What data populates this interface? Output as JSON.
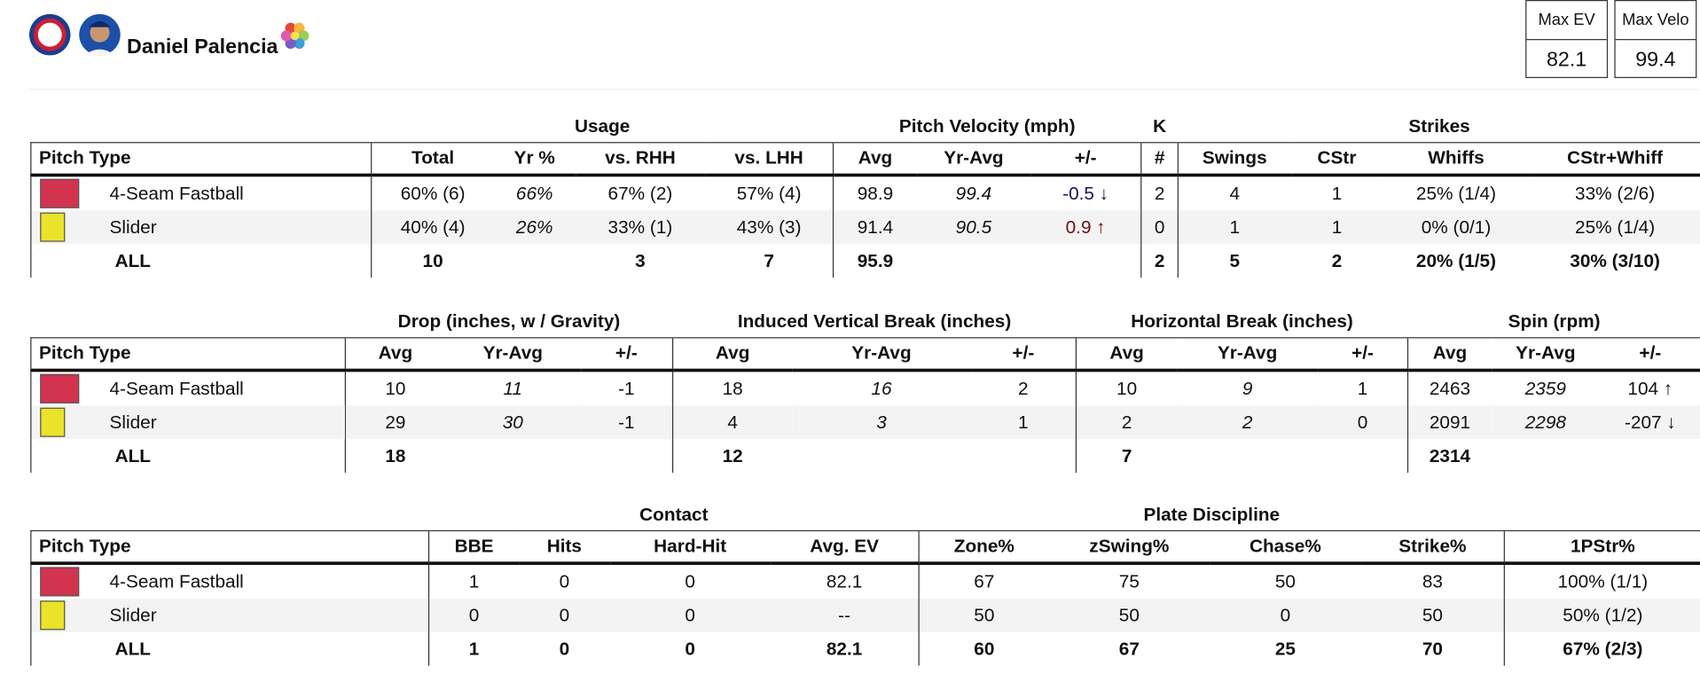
{
  "header": {
    "player_name": "Daniel Palencia",
    "stats": [
      {
        "label": "Max EV",
        "value": "82.1"
      },
      {
        "label": "Max Velo",
        "value": "99.4"
      }
    ]
  },
  "tables": [
    {
      "first_column": "Pitch Type",
      "groups": [
        {
          "label": "Usage",
          "columns": [
            "Total",
            {
              "label": "Yr %",
              "italic": true
            },
            "vs. RHH",
            "vs. LHH"
          ]
        },
        {
          "label": "Pitch Velocity (mph)",
          "columns": [
            "Avg",
            {
              "label": "Yr-Avg",
              "italic": true
            },
            "+/-"
          ]
        },
        {
          "label": "K",
          "columns": [
            "#"
          ]
        },
        {
          "label": "Strikes",
          "columns": [
            "Swings",
            "CStr",
            "Whiffs",
            "CStr+Whiff"
          ]
        }
      ],
      "rows": [
        {
          "pitch": "4-Seam Fastball",
          "color": "#d2344f",
          "cells": [
            "60% (6)",
            "66%",
            "67% (2)",
            "57% (4)",
            "98.9",
            "99.4",
            {
              "text": "-0.5 ↓",
              "color": "#14145a"
            },
            "2",
            "4",
            "1",
            "25% (1/4)",
            "33% (2/6)"
          ]
        },
        {
          "pitch": "Slider",
          "color": "#ebe22a",
          "cells": [
            "40% (4)",
            "26%",
            "33% (1)",
            "43% (3)",
            "91.4",
            "90.5",
            {
              "text": "0.9 ↑",
              "color": "#6b0f0f"
            },
            "0",
            "1",
            "1",
            "0% (0/1)",
            "25% (1/4)"
          ]
        },
        {
          "pitch": "ALL",
          "cells": [
            "10",
            null,
            "3",
            "7",
            "95.9",
            null,
            null,
            "2",
            "5",
            "2",
            "20% (1/5)",
            "30% (3/10)"
          ]
        }
      ]
    },
    {
      "first_column": "Pitch Type",
      "groups": [
        {
          "label": "Drop (inches, w / Gravity)",
          "columns": [
            "Avg",
            {
              "label": "Yr-Avg",
              "italic": true
            },
            "+/-"
          ]
        },
        {
          "label": "Induced Vertical Break (inches)",
          "columns": [
            "Avg",
            {
              "label": "Yr-Avg",
              "italic": true
            },
            "+/-"
          ]
        },
        {
          "label": "Horizontal Break (inches)",
          "columns": [
            "Avg",
            {
              "label": "Yr-Avg",
              "italic": true
            },
            "+/-"
          ]
        },
        {
          "label": "Spin (rpm)",
          "columns": [
            "Avg",
            {
              "label": "Yr-Avg",
              "italic": true
            },
            "+/-"
          ]
        }
      ],
      "rows": [
        {
          "pitch": "4-Seam Fastball",
          "color": "#d2344f",
          "cells": [
            "10",
            "11",
            "-1",
            "18",
            "16",
            "2",
            "10",
            "9",
            "1",
            "2463",
            "2359",
            "104 ↑"
          ]
        },
        {
          "pitch": "Slider",
          "color": "#ebe22a",
          "cells": [
            "29",
            "30",
            "-1",
            "4",
            "3",
            "1",
            "2",
            "2",
            "0",
            "2091",
            "2298",
            "-207 ↓"
          ]
        },
        {
          "pitch": "ALL",
          "cells": [
            "18",
            null,
            null,
            "12",
            null,
            null,
            "7",
            null,
            null,
            "2314",
            null,
            null
          ]
        }
      ]
    },
    {
      "first_column": "Pitch Type",
      "groups": [
        {
          "label": "Contact",
          "columns": [
            "BBE",
            "Hits",
            "Hard-Hit",
            "Avg. EV"
          ]
        },
        {
          "label": "Plate Discipline",
          "columns": [
            "Zone%",
            "zSwing%",
            "Chase%",
            "Strike%"
          ]
        },
        {
          "label": null,
          "columns": [
            "1PStr%"
          ]
        }
      ],
      "rows": [
        {
          "pitch": "4-Seam Fastball",
          "color": "#d2344f",
          "cells": [
            "1",
            "0",
            "0",
            "82.1",
            "67",
            "75",
            "50",
            "83",
            "100% (1/1)"
          ]
        },
        {
          "pitch": "Slider",
          "color": "#ebe22a",
          "cells": [
            "0",
            "0",
            "0",
            "--",
            "50",
            "50",
            "0",
            "50",
            "50% (1/2)"
          ]
        },
        {
          "pitch": "ALL",
          "cells": [
            "1",
            "0",
            "0",
            "82.1",
            "60",
            "67",
            "25",
            "70",
            "67% (2/3)"
          ]
        }
      ]
    }
  ]
}
